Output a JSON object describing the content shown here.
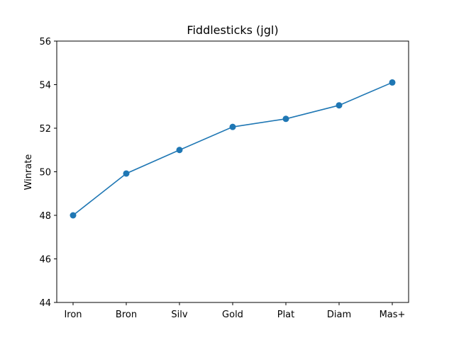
{
  "chart_data": {
    "type": "line",
    "title": "Fiddlesticks (jgl)",
    "xlabel": "",
    "ylabel": "Winrate",
    "categories": [
      "Iron",
      "Bron",
      "Silv",
      "Gold",
      "Plat",
      "Diam",
      "Mas+"
    ],
    "series": [
      {
        "values": [
          48.0,
          49.92,
          51.0,
          52.06,
          52.43,
          53.05,
          54.1
        ],
        "color": "#1f77b4"
      }
    ],
    "ylim": [
      44,
      56
    ],
    "yticks": [
      44,
      46,
      48,
      50,
      52,
      54,
      56
    ],
    "grid": false,
    "marker": "circle"
  }
}
